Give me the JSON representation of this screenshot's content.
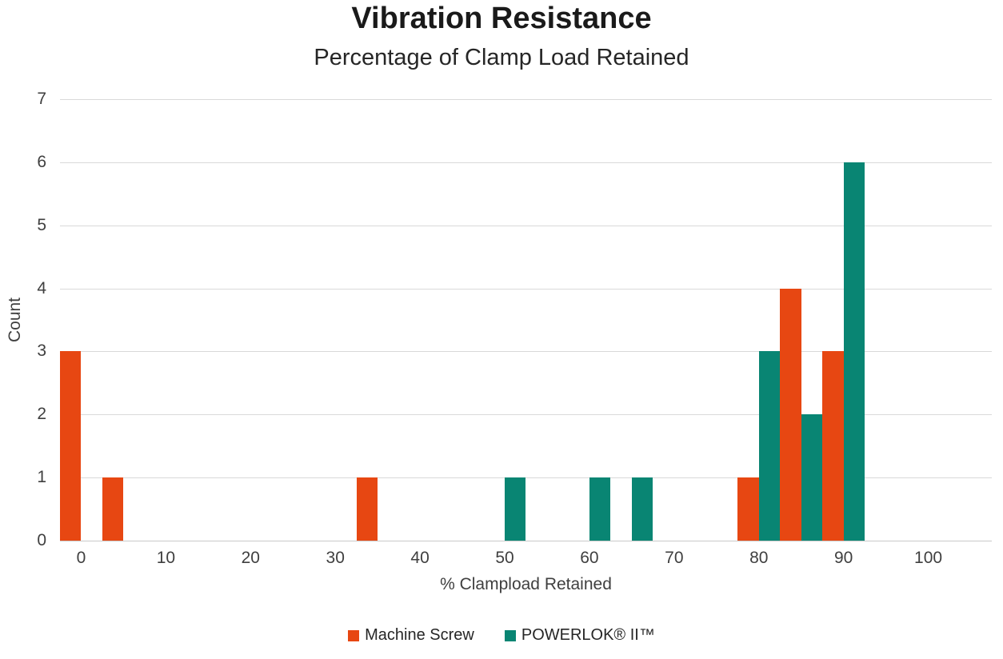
{
  "chart_data": {
    "type": "bar",
    "title": "Vibration Resistance",
    "subtitle": "Percentage of Clamp Load Retained",
    "xlabel": "% Clampload Retained",
    "ylabel": "Count",
    "xlim": [
      -2.5,
      107.5
    ],
    "ylim": [
      0,
      7
    ],
    "x_ticks": [
      0,
      10,
      20,
      30,
      40,
      50,
      60,
      70,
      80,
      90,
      100
    ],
    "y_ticks": [
      0,
      1,
      2,
      3,
      4,
      5,
      6,
      7
    ],
    "bin_width": 2.5,
    "grid": true,
    "legend_position": "bottom",
    "palette": {
      "gridline": "#d9d9d9",
      "tick_text": "#3f3f3f",
      "title_text": "#1a1a1a"
    },
    "series": [
      {
        "name": "Machine Screw",
        "color": "#E74712",
        "bars": [
          {
            "bin_start": -2.5,
            "bin_end": 0,
            "count": 3
          },
          {
            "bin_start": 2.5,
            "bin_end": 5,
            "count": 1
          },
          {
            "bin_start": 32.5,
            "bin_end": 35,
            "count": 1
          },
          {
            "bin_start": 77.5,
            "bin_end": 80,
            "count": 1
          },
          {
            "bin_start": 82.5,
            "bin_end": 85,
            "count": 4
          },
          {
            "bin_start": 87.5,
            "bin_end": 90,
            "count": 3
          }
        ]
      },
      {
        "name": "POWERLOK® II™",
        "color": "#098573",
        "bars": [
          {
            "bin_start": 50,
            "bin_end": 52.5,
            "count": 1
          },
          {
            "bin_start": 60,
            "bin_end": 62.5,
            "count": 1
          },
          {
            "bin_start": 65,
            "bin_end": 67.5,
            "count": 1
          },
          {
            "bin_start": 80,
            "bin_end": 82.5,
            "count": 3
          },
          {
            "bin_start": 85,
            "bin_end": 87.5,
            "count": 2
          },
          {
            "bin_start": 90,
            "bin_end": 92.5,
            "count": 6
          }
        ]
      }
    ]
  }
}
